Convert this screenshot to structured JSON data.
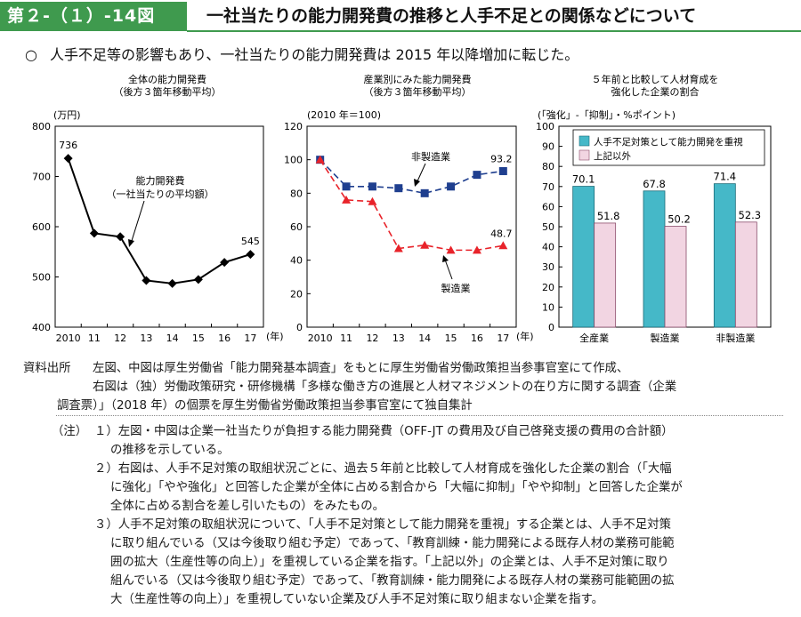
{
  "header": {
    "figure_label": "第２-（１）-14図",
    "title": "一社当たりの能力開発費の推移と人手不足との関係などについて"
  },
  "summary": {
    "bullet": "○",
    "text": "人手不足等の影響もあり、一社当たりの能力開発費は 2015 年以降増加に転じた。"
  },
  "colors": {
    "accent_green": "#3f9a4e",
    "line_black": "#000000",
    "non_manufacturing_blue": "#1f3f8f",
    "manufacturing_red": "#e8232a",
    "bar_teal": "#45b8c8",
    "bar_pink": "#f2d5e2"
  },
  "chart_data": [
    {
      "type": "line",
      "title": "全体の能力開発費",
      "subtitle": "（後方３箇年移動平均）",
      "unit_label": "(万円)",
      "x_unit_label": "(年)",
      "x": [
        "2010",
        "11",
        "12",
        "13",
        "14",
        "15",
        "16",
        "17"
      ],
      "ylim": [
        400,
        800
      ],
      "yticks": [
        400,
        500,
        600,
        700,
        800
      ],
      "series": [
        {
          "name": "能力開発費（一社当たりの平均額）",
          "values": [
            736,
            587,
            580,
            493,
            487,
            495,
            529,
            545
          ]
        }
      ],
      "annotation_lines": [
        "能力開発費",
        "（一社当たりの平均額）"
      ],
      "data_labels": [
        {
          "index": 0,
          "text": "736"
        },
        {
          "index": 7,
          "text": "545"
        }
      ]
    },
    {
      "type": "line",
      "title": "産業別にみた能力開発費",
      "subtitle": "（後方３箇年移動平均）",
      "unit_label": "(2010 年＝100)",
      "x_unit_label": "(年)",
      "x": [
        "2010",
        "11",
        "12",
        "13",
        "14",
        "15",
        "16",
        "17"
      ],
      "ylim": [
        0,
        120
      ],
      "yticks": [
        0,
        20,
        40,
        60,
        80,
        100,
        120
      ],
      "series": [
        {
          "name": "非製造業",
          "values": [
            100,
            84,
            84,
            83,
            80,
            84,
            91,
            93.2
          ]
        },
        {
          "name": "製造業",
          "values": [
            100,
            76,
            75,
            47,
            49,
            46,
            46,
            48.7
          ]
        }
      ],
      "data_labels": [
        {
          "series": 0,
          "index": 7,
          "text": "93.2"
        },
        {
          "series": 1,
          "index": 7,
          "text": "48.7"
        }
      ]
    },
    {
      "type": "bar",
      "title": "５年前と比較して人材育成を",
      "subtitle": "強化した企業の割合",
      "unit_label": "(「強化」-「抑制」・%ポイント)",
      "categories": [
        "全産業",
        "製造業",
        "非製造業"
      ],
      "ylim": [
        0,
        100
      ],
      "yticks": [
        0,
        10,
        20,
        30,
        40,
        50,
        60,
        70,
        80,
        90,
        100
      ],
      "legend": "top-right",
      "series": [
        {
          "name": "人手不足対策として能力開発を重視",
          "values": [
            70.1,
            67.8,
            71.4
          ]
        },
        {
          "name": "上記以外",
          "values": [
            51.8,
            50.2,
            52.3
          ]
        }
      ]
    }
  ],
  "notes": {
    "source_label": "資料出所",
    "source_lines": [
      "左図、中図は厚生労働省「能力開発基本調査」をもとに厚生労働省労働政策担当参事官室にて作成、",
      "右図は（独）労働政策研究・研修機構「多様な働き方の進展と人材マネジメントの在り方に関する調査（企業",
      "調査票）」（2018 年）の個票を厚生労働省労働政策担当参事官室にて独自集計"
    ],
    "note_label": "（注）",
    "note_lines": [
      "１）左図・中図は企業一社当たりが負担する能力開発費（OFF-JT の費用及び自己啓発支援の費用の合計額）",
      "の推移を示している。",
      "２）右図は、人手不足対策の取組状況ごとに、過去５年前と比較して人材育成を強化した企業の割合（「大幅",
      "に強化」「やや強化」と回答した企業が全体に占める割合から「大幅に抑制」「やや抑制」と回答した企業が",
      "全体に占める割合を差し引いたもの）をみたもの。",
      "３）人手不足対策の取組状況について、「人手不足対策として能力開発を重視」する企業とは、人手不足対策",
      "に取り組んでいる（又は今後取り組む予定）であって、「教育訓練・能力開発による既存人材の業務可能範",
      "囲の拡大（生産性等の向上）」を重視している企業を指す。「上記以外」の企業とは、人手不足対策に取り",
      "組んでいる（又は今後取り組む予定）であって、「教育訓練・能力開発による既存人材の業務可能範囲の拡",
      "大（生産性等の向上）」を重視していない企業及び人手不足対策に取り組まない企業を指す。"
    ]
  }
}
